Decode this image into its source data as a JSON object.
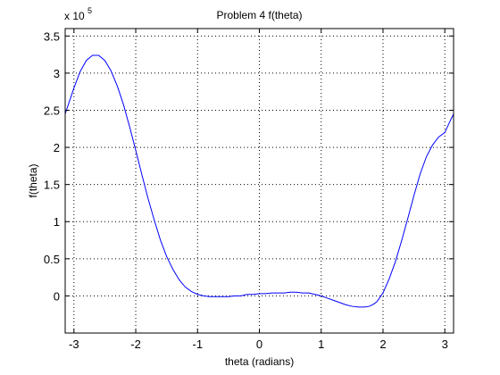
{
  "chart_data": {
    "type": "line",
    "title": "Problem 4 f(theta)",
    "xlabel": "theta (radians)",
    "ylabel": "f(theta)",
    "y_exponent_prefix": "x 10",
    "y_exponent_power": "5",
    "xlim": [
      -3.14159,
      3.14159
    ],
    "ylim": [
      -0.5,
      3.6
    ],
    "x_ticks": [
      -3,
      -2,
      -1,
      0,
      1,
      2,
      3
    ],
    "x_tick_labels": [
      "-3",
      "-2",
      "-1",
      "0",
      "1",
      "2",
      "3"
    ],
    "y_ticks": [
      0,
      0.5,
      1,
      1.5,
      2,
      2.5,
      3,
      3.5
    ],
    "y_tick_labels": [
      "0",
      "0.5",
      "1",
      "1.5",
      "2",
      "2.5",
      "3",
      "3.5"
    ],
    "grid": true,
    "colors": {
      "line": "#0000ff",
      "axes": "#000000",
      "grid": "#000000",
      "background": "#ffffff"
    },
    "series": [
      {
        "x": [
          -3.14159,
          -3.0,
          -2.9,
          -2.8,
          -2.7,
          -2.6,
          -2.5,
          -2.4,
          -2.3,
          -2.2,
          -2.1,
          -2.0,
          -1.9,
          -1.8,
          -1.7,
          -1.6,
          -1.5,
          -1.4,
          -1.3,
          -1.2,
          -1.1,
          -1.0,
          -0.9,
          -0.8,
          -0.7,
          -0.6,
          -0.5,
          -0.4,
          -0.3,
          -0.2,
          -0.1,
          0.0,
          0.1,
          0.2,
          0.3,
          0.4,
          0.5,
          0.6,
          0.7,
          0.8,
          0.9,
          1.0,
          1.1,
          1.2,
          1.3,
          1.4,
          1.5,
          1.6,
          1.7,
          1.78,
          1.85,
          1.9,
          2.0,
          2.1,
          2.2,
          2.3,
          2.4,
          2.5,
          2.6,
          2.7,
          2.8,
          2.9,
          3.0,
          3.1,
          3.14159
        ],
        "y": [
          2.45,
          2.8,
          3.02,
          3.17,
          3.24,
          3.24,
          3.17,
          3.03,
          2.83,
          2.58,
          2.28,
          1.96,
          1.63,
          1.31,
          1.02,
          0.75,
          0.53,
          0.36,
          0.22,
          0.12,
          0.06,
          0.02,
          0.0,
          -0.01,
          -0.01,
          -0.01,
          -0.01,
          0.0,
          0.0,
          0.02,
          0.02,
          0.03,
          0.03,
          0.04,
          0.04,
          0.04,
          0.05,
          0.05,
          0.04,
          0.04,
          0.02,
          0.0,
          -0.03,
          -0.06,
          -0.09,
          -0.12,
          -0.14,
          -0.15,
          -0.15,
          -0.14,
          -0.11,
          -0.08,
          0.04,
          0.23,
          0.46,
          0.74,
          1.04,
          1.35,
          1.64,
          1.87,
          2.03,
          2.14,
          2.2,
          2.38,
          2.45
        ]
      }
    ]
  }
}
